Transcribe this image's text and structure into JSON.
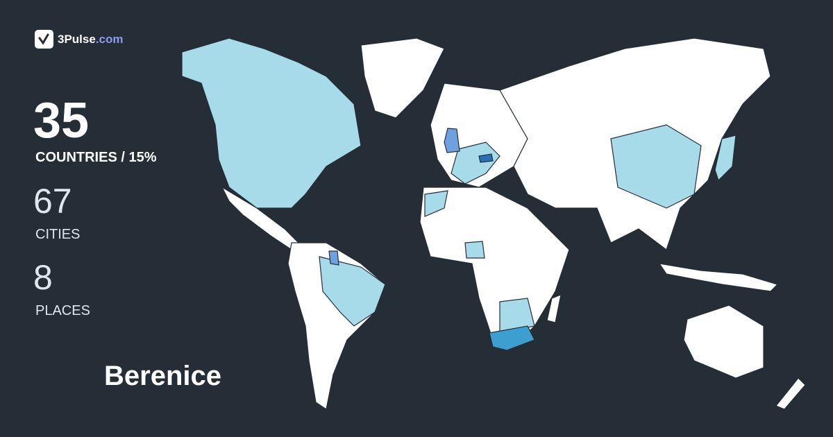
{
  "brand": {
    "name": "3Pulse",
    "domain": ".com",
    "icon": "check-pulse-icon"
  },
  "stats": {
    "countries": "35",
    "countries_label": "COUNTRIES / 15%",
    "cities": "67",
    "cities_label": "CITIES",
    "places": "8",
    "places_label": "PLACES"
  },
  "user": {
    "name": "Berenice"
  },
  "colors": {
    "background": "#252d36",
    "unvisited": "#ffffff",
    "visited": "#a8dbea",
    "visited_more": "#6fa1e0",
    "visited_most": "#3d9fd0",
    "brand_accent": "#8c9cf0"
  }
}
